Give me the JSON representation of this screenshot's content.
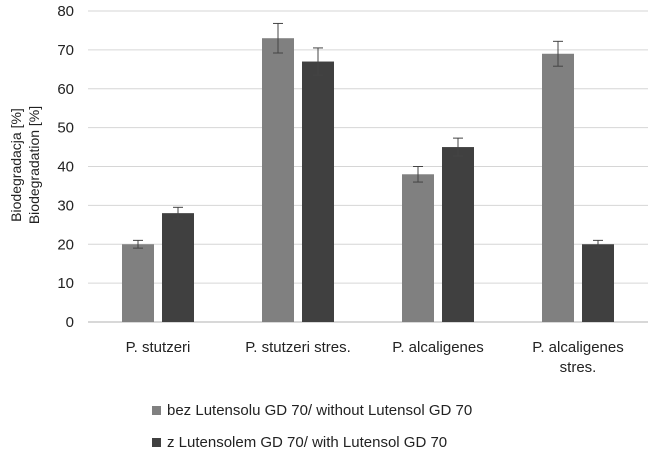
{
  "chart_data": {
    "type": "bar",
    "categories": [
      [
        "P. stutzeri"
      ],
      [
        "P. stutzeri stres."
      ],
      [
        "P. alcaligenes"
      ],
      [
        "P. alcaligenes",
        "stres."
      ]
    ],
    "series": [
      {
        "name": "bez Lutensolu GD 70/ without Lutensol GD 70",
        "color": "#808080",
        "values": [
          20,
          73,
          38,
          69
        ],
        "errors": [
          1,
          3.8,
          2,
          3.2
        ]
      },
      {
        "name": "z Lutensolem GD 70/ with Lutensol GD 70",
        "color": "#404040",
        "values": [
          28,
          67,
          45,
          20
        ],
        "errors": [
          1.5,
          3.5,
          2.3,
          1
        ]
      }
    ],
    "ylabel": [
      "Biodegradacja [%]",
      "Biodegradation [%]"
    ],
    "ylim": [
      0,
      80
    ],
    "yticks": [
      0,
      10,
      20,
      30,
      40,
      50,
      60,
      70,
      80
    ],
    "grid": true,
    "legend_position": "bottom"
  }
}
